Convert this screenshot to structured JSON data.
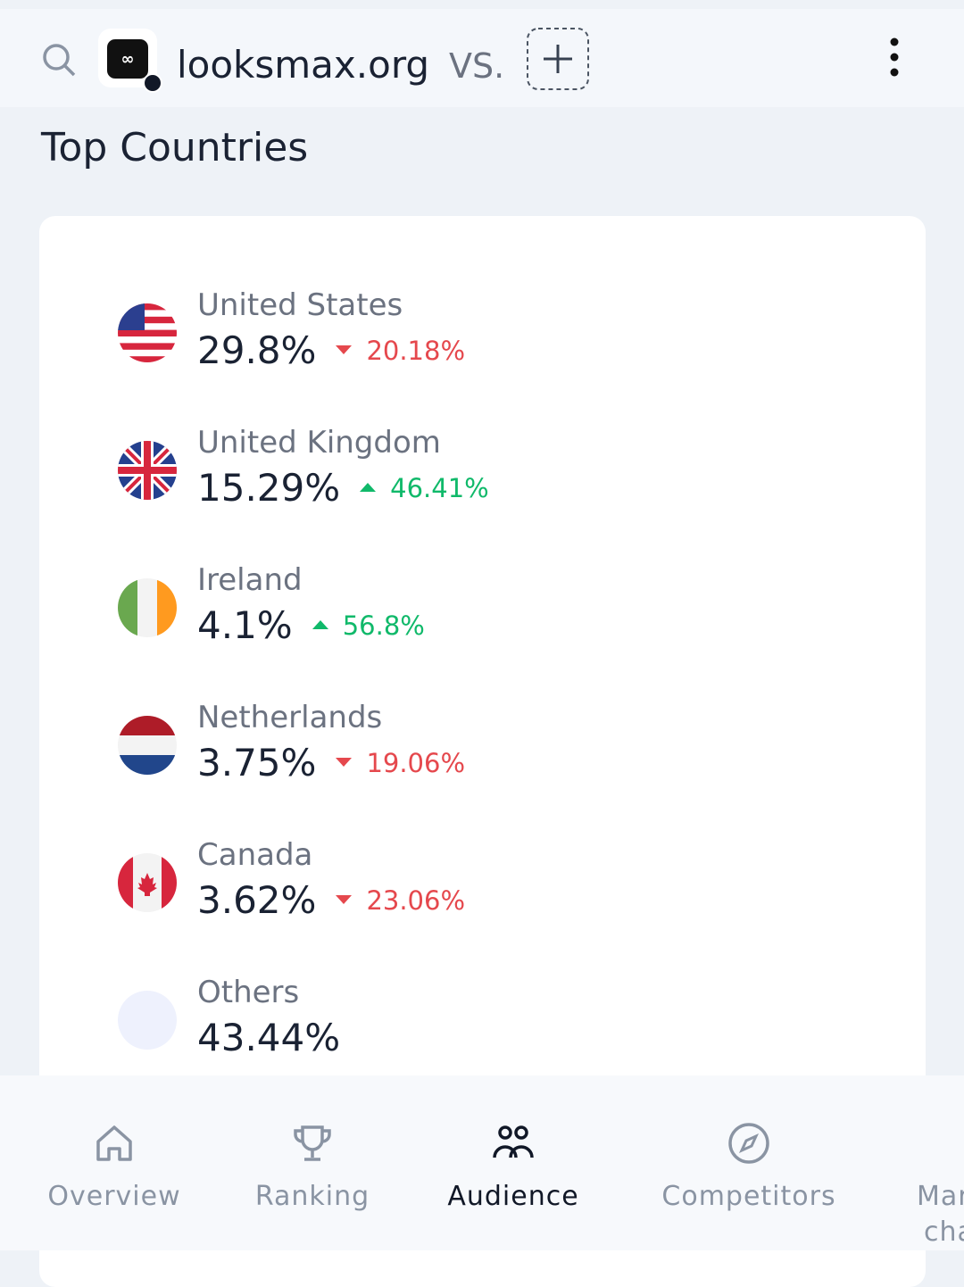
{
  "header": {
    "site": "looksmax.org",
    "vs": "VS."
  },
  "section": {
    "title": "Top Countries"
  },
  "countries": [
    {
      "name": "United States",
      "share": "29.8%",
      "change": "20.18%",
      "direction": "down"
    },
    {
      "name": "United Kingdom",
      "share": "15.29%",
      "change": "46.41%",
      "direction": "up"
    },
    {
      "name": "Ireland",
      "share": "4.1%",
      "change": "56.8%",
      "direction": "up"
    },
    {
      "name": "Netherlands",
      "share": "3.75%",
      "change": "19.06%",
      "direction": "down"
    },
    {
      "name": "Canada",
      "share": "3.62%",
      "change": "23.06%",
      "direction": "down"
    },
    {
      "name": "Others",
      "share": "43.44%"
    }
  ],
  "nav": [
    {
      "label": "Overview",
      "active": false
    },
    {
      "label": "Ranking",
      "active": false
    },
    {
      "label": "Audience",
      "active": true
    },
    {
      "label": "Competitors",
      "active": false
    },
    {
      "lines": [
        "Mar",
        "cha"
      ],
      "active": false
    }
  ]
}
